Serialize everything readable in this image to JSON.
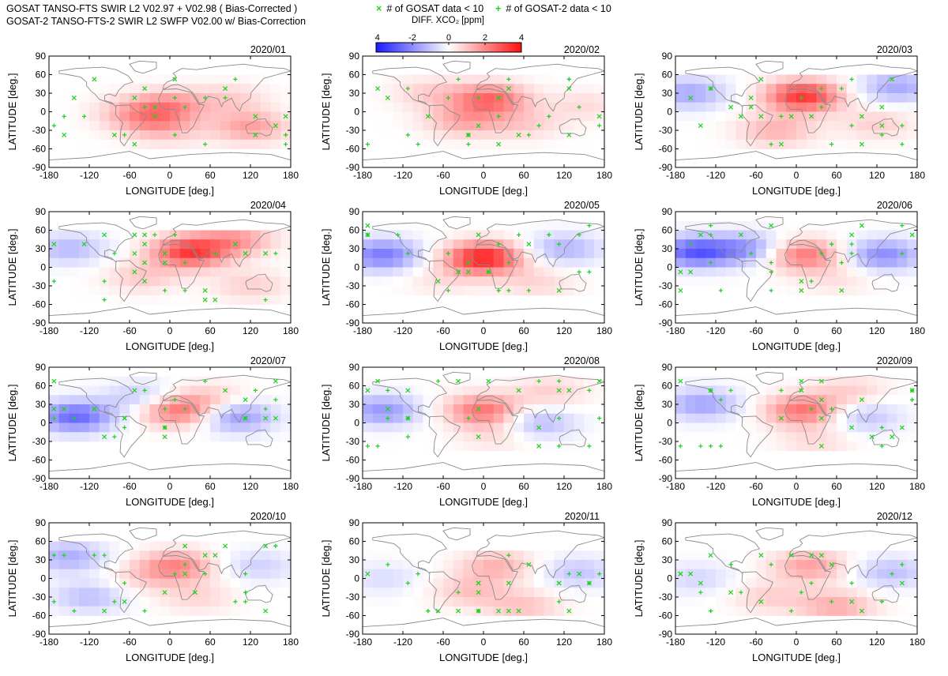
{
  "header": {
    "line1": "GOSAT TANSO-FTS SWIR L2 V02.97 + V02.98 ( Bias-Corrected )",
    "line2": "GOSAT-2 TANSO-FTS-2 SWIR L2 SWFP V02.00 w/ Bias-Correction"
  },
  "legend": {
    "gosat_marker": "×",
    "gosat_label": "# of GOSAT data < 10",
    "gosat2_marker": "+",
    "gosat2_label": "# of GOSAT-2 data < 10",
    "marker_color": "#1fd21f"
  },
  "colorbar": {
    "title": "DIFF. XCO₂ [ppm]",
    "min": -4,
    "max": 4,
    "ticks": [
      "-4",
      "-2",
      "0",
      "2",
      "4"
    ],
    "low_color": "#1a1aff",
    "mid_color": "#ffffff",
    "high_color": "#ff1010"
  },
  "chart_data": {
    "type": "heatmap",
    "xlabel": "LONGITUDE [deg.]",
    "ylabel": "LATITUDE [deg.]",
    "xlim": [
      -180,
      180
    ],
    "ylim": [
      -90,
      90
    ],
    "xticks": [
      "-180",
      "-120",
      "-60",
      "0",
      "60",
      "120",
      "180"
    ],
    "yticks": [
      "90",
      "60",
      "30",
      "0",
      "-30",
      "-60",
      "-90"
    ],
    "grid_cell_deg": 15,
    "value_units": "ppm",
    "coast_color": "#8a8a8a",
    "panels": [
      {
        "title": "2020/01",
        "lat_range": [
          -60,
          60
        ],
        "pattern": [
          [
            0,
            10,
            0.6,
            1.7
          ],
          [
            -30,
            -15,
            0.4,
            1.1
          ],
          [
            120,
            -25,
            -0.3,
            1.6
          ],
          [
            -60,
            0,
            -0.4,
            0.8
          ],
          [
            90,
            20,
            0.7,
            0.8
          ],
          [
            0,
            -30,
            0.3,
            0.7
          ]
        ]
      },
      {
        "title": "2020/02",
        "lat_range": [
          -60,
          60
        ],
        "pattern": [
          [
            10,
            20,
            1.1,
            2.5
          ],
          [
            -30,
            -15,
            0.3,
            1.4
          ],
          [
            60,
            -20,
            0.2,
            0.8
          ],
          [
            -80,
            30,
            -0.4,
            0.8
          ],
          [
            150,
            10,
            -0.3,
            0.6
          ]
        ]
      },
      {
        "title": "2020/03",
        "lat_range": [
          -60,
          60
        ],
        "pattern": [
          [
            10,
            25,
            1.3,
            3.4
          ],
          [
            -30,
            -30,
            0.3,
            1.3
          ],
          [
            120,
            -20,
            0.2,
            0.8
          ],
          [
            -160,
            30,
            -0.5,
            -1.5
          ],
          [
            150,
            40,
            -0.6,
            -1.5
          ]
        ]
      },
      {
        "title": "2020/04",
        "lat_range": [
          -60,
          60
        ],
        "pattern": [
          [
            30,
            25,
            1.5,
            3.3
          ],
          [
            -40,
            -15,
            0.4,
            0.9
          ],
          [
            -150,
            30,
            -0.5,
            -1.2
          ],
          [
            120,
            -30,
            0.3,
            0.8
          ],
          [
            100,
            45,
            0.6,
            1.6
          ]
        ]
      },
      {
        "title": "2020/05",
        "lat_range": [
          -45,
          75
        ],
        "pattern": [
          [
            0,
            15,
            0.7,
            3.8
          ],
          [
            -150,
            20,
            -0.7,
            -2.3
          ],
          [
            120,
            30,
            -0.6,
            -1.3
          ],
          [
            80,
            -25,
            0.4,
            0.7
          ],
          [
            -60,
            -20,
            0.2,
            0.5
          ]
        ]
      },
      {
        "title": "2020/06",
        "lat_range": [
          -45,
          75
        ],
        "pattern": [
          [
            10,
            20,
            0.7,
            2.4
          ],
          [
            -150,
            25,
            -0.7,
            -2.8
          ],
          [
            130,
            20,
            -0.6,
            -2.0
          ],
          [
            -70,
            30,
            -0.5,
            -1.7
          ],
          [
            60,
            -20,
            0.3,
            0.5
          ]
        ]
      },
      {
        "title": "2020/07",
        "lat_range": [
          -30,
          75
        ],
        "pattern": [
          [
            10,
            20,
            0.8,
            2.4
          ],
          [
            -140,
            10,
            -0.8,
            -2.6
          ],
          [
            100,
            10,
            -0.7,
            -1.8
          ],
          [
            -40,
            40,
            -0.4,
            -1.1
          ],
          [
            60,
            40,
            0.5,
            0.8
          ]
        ]
      },
      {
        "title": "2020/08",
        "lat_range": [
          -45,
          75
        ],
        "pattern": [
          [
            0,
            20,
            0.7,
            2.4
          ],
          [
            -150,
            20,
            -0.7,
            -1.8
          ],
          [
            80,
            0,
            -0.6,
            -1.3
          ],
          [
            20,
            -20,
            0.3,
            0.6
          ],
          [
            100,
            50,
            0.5,
            0.8
          ]
        ]
      },
      {
        "title": "2020/09",
        "lat_range": [
          -45,
          75
        ],
        "pattern": [
          [
            10,
            20,
            0.6,
            2.4
          ],
          [
            -140,
            30,
            -0.6,
            -1.6
          ],
          [
            100,
            10,
            -0.5,
            -1.1
          ],
          [
            30,
            -30,
            0.3,
            0.6
          ],
          [
            80,
            50,
            0.5,
            0.8
          ]
        ]
      },
      {
        "title": "2020/10",
        "lat_range": [
          -60,
          60
        ],
        "pattern": [
          [
            10,
            20,
            0.7,
            2.0
          ],
          [
            -150,
            35,
            -0.7,
            -1.4
          ],
          [
            -120,
            -30,
            -0.5,
            -1.1
          ],
          [
            40,
            -30,
            0.3,
            0.7
          ],
          [
            130,
            20,
            -0.5,
            -0.8
          ],
          [
            -40,
            0,
            0.3,
            0.6
          ]
        ]
      },
      {
        "title": "2020/11",
        "lat_range": [
          -60,
          45
        ],
        "pattern": [
          [
            20,
            20,
            0.7,
            1.3
          ],
          [
            -20,
            -20,
            0.4,
            1.0
          ],
          [
            60,
            -45,
            0.4,
            1.0
          ],
          [
            140,
            10,
            -0.5,
            -1.0
          ],
          [
            -150,
            0,
            -0.4,
            -0.6
          ]
        ]
      },
      {
        "title": "2020/12",
        "lat_range": [
          -60,
          45
        ],
        "pattern": [
          [
            20,
            20,
            0.7,
            1.6
          ],
          [
            60,
            -45,
            0.4,
            1.4
          ],
          [
            140,
            10,
            -0.5,
            -1.1
          ],
          [
            -150,
            0,
            -0.4,
            -0.7
          ],
          [
            -40,
            -30,
            0.3,
            0.8
          ]
        ]
      }
    ]
  }
}
